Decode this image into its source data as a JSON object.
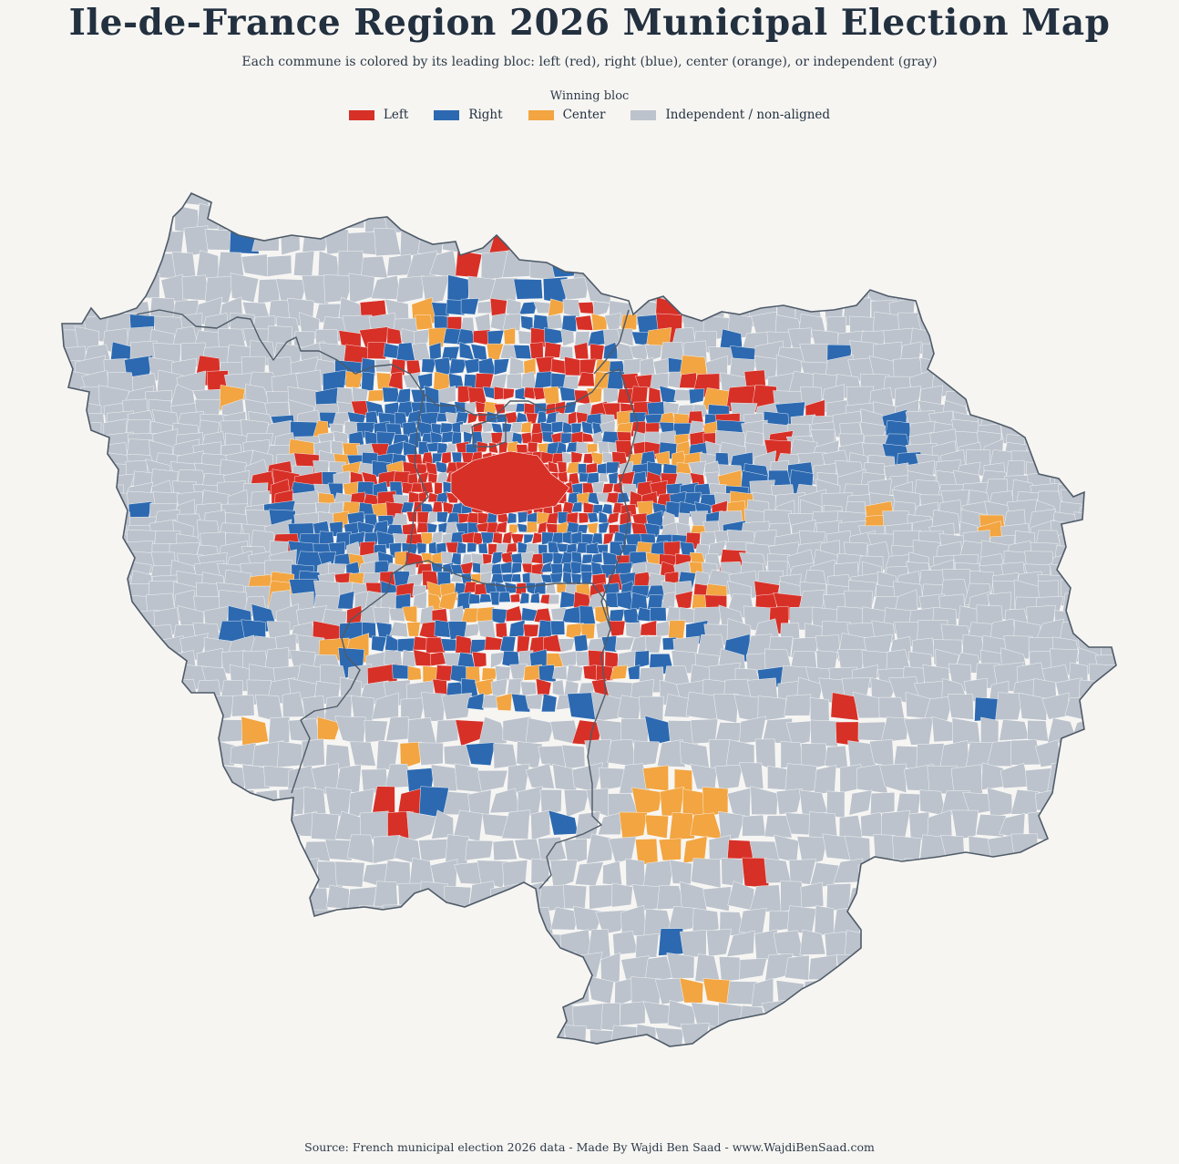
{
  "title": "Ile-de-France Region 2026 Municipal Election Map",
  "subtitle": "Each commune is colored by its leading bloc: left (red), right (blue), center (orange), or independent (gray)",
  "legend": {
    "title": "Winning bloc",
    "items": [
      {
        "label": "Left",
        "color": "#d73027"
      },
      {
        "label": "Right",
        "color": "#2c69b0"
      },
      {
        "label": "Center",
        "color": "#f2a541"
      },
      {
        "label": "Independent / non-aligned",
        "color": "#bcc3cc"
      }
    ]
  },
  "colors": {
    "background": "#f6f5f2",
    "outline": "#4f5b68",
    "commune_border": "#ffffff"
  },
  "source": "Source: French municipal election 2026 data - Made By Wajdi Ben Saad - www.WajdiBenSaad.com"
}
